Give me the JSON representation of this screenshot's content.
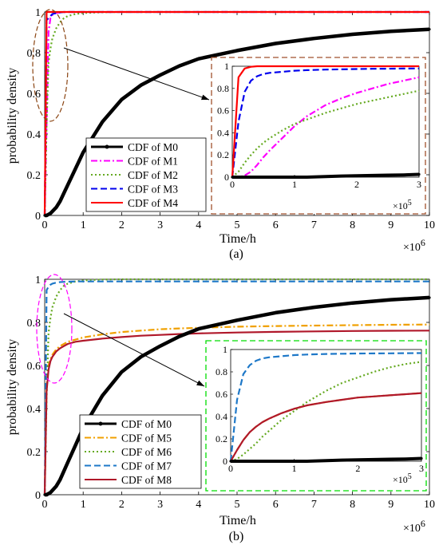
{
  "panels": [
    {
      "sublabel": "(a)",
      "xlabel": "Time/h",
      "ylabel": "probability density",
      "x_multiplier": "×10",
      "x_multiplier_exp": "6",
      "inset_multiplier": "×10",
      "inset_multiplier_exp": "5",
      "ellipse_color": "#8B4513",
      "inset_frame_color": "#A0522D"
    },
    {
      "sublabel": "(b)",
      "xlabel": "Time/h",
      "ylabel": "probability density",
      "x_multiplier": "×10",
      "x_multiplier_exp": "6",
      "inset_multiplier": "×10",
      "inset_multiplier_exp": "5",
      "ellipse_color": "#FF00FF",
      "inset_frame_color": "#00DD00"
    }
  ],
  "chart_data": [
    {
      "type": "line",
      "title": "",
      "xlabel": "Time/h",
      "ylabel": "probability density",
      "x_scale_note": "×10^6",
      "xlim": [
        0,
        10
      ],
      "ylim": [
        0,
        1
      ],
      "x_ticks": [
        "0",
        "1",
        "2",
        "3",
        "4",
        "5",
        "6",
        "7",
        "8",
        "9",
        "10"
      ],
      "y_ticks": [
        "0",
        "0.2",
        "0.4",
        "0.6",
        "0.8",
        "1"
      ],
      "legend_position": "center-left",
      "x": [
        0,
        0.05,
        0.1,
        0.15,
        0.2,
        0.3,
        0.4,
        0.5,
        0.6,
        0.8,
        1,
        1.5,
        2,
        2.5,
        3,
        3.5,
        4,
        5,
        6,
        7,
        8,
        9,
        10
      ],
      "series": [
        {
          "name": "CDF of M0",
          "color": "#000000",
          "style": "solid-marker",
          "values": [
            0,
            0.0,
            0.005,
            0.01,
            0.02,
            0.04,
            0.07,
            0.11,
            0.15,
            0.23,
            0.31,
            0.46,
            0.57,
            0.64,
            0.69,
            0.735,
            0.77,
            0.81,
            0.845,
            0.87,
            0.89,
            0.905,
            0.915
          ]
        },
        {
          "name": "CDF of M1",
          "color": "#FF00FF",
          "style": "dashdot",
          "values": [
            0,
            0.45,
            0.9,
            0.97,
            0.985,
            0.995,
            0.998,
            0.999,
            1,
            1,
            1,
            1,
            1,
            1,
            1,
            1,
            1,
            1,
            1,
            1,
            1,
            1,
            1
          ]
        },
        {
          "name": "CDF of M2",
          "color": "#66AA22",
          "style": "dotted",
          "values": [
            0,
            0.45,
            0.75,
            0.82,
            0.87,
            0.92,
            0.95,
            0.97,
            0.98,
            0.99,
            0.995,
            0.999,
            1,
            1,
            1,
            1,
            1,
            1,
            1,
            1,
            1,
            1,
            1
          ]
        },
        {
          "name": "CDF of M3",
          "color": "#0000EE",
          "style": "dashed",
          "values": [
            0,
            0.96,
            0.97,
            0.98,
            0.99,
            0.995,
            0.998,
            1,
            1,
            1,
            1,
            1,
            1,
            1,
            1,
            1,
            1,
            1,
            1,
            1,
            1,
            1,
            1
          ]
        },
        {
          "name": "CDF of M4",
          "color": "#FF0000",
          "style": "solid",
          "values": [
            0,
            1,
            1,
            1,
            1,
            1,
            1,
            1,
            1,
            1,
            1,
            1,
            1,
            1,
            1,
            1,
            1,
            1,
            1,
            1,
            1,
            1,
            1
          ]
        }
      ],
      "inset": {
        "xlim": [
          0,
          3
        ],
        "ylim": [
          0,
          1
        ],
        "x_scale_note": "×10^5",
        "x_ticks": [
          "0",
          "1",
          "2",
          "3"
        ],
        "y_ticks": [
          "0",
          "0.2",
          "0.4",
          "0.6",
          "0.8",
          "1"
        ],
        "x": [
          0,
          0.1,
          0.2,
          0.3,
          0.4,
          0.5,
          0.6,
          0.8,
          1,
          1.2,
          1.5,
          1.75,
          2,
          2.25,
          2.5,
          2.75,
          3
        ],
        "series": [
          {
            "name": "CDF of M0",
            "values": [
              0,
              0,
              0,
              0,
              0,
              0,
              0,
              0,
              0,
              0,
              0.005,
              0.01,
              0.012,
              0.015,
              0.018,
              0.02,
              0.025
            ]
          },
          {
            "name": "CDF of M1",
            "values": [
              0,
              0,
              0.015,
              0.05,
              0.11,
              0.18,
              0.24,
              0.35,
              0.46,
              0.55,
              0.65,
              0.71,
              0.76,
              0.8,
              0.84,
              0.87,
              0.9
            ]
          },
          {
            "name": "CDF of M2",
            "values": [
              0,
              0.05,
              0.13,
              0.2,
              0.26,
              0.31,
              0.35,
              0.42,
              0.48,
              0.52,
              0.58,
              0.62,
              0.66,
              0.69,
              0.72,
              0.75,
              0.78
            ]
          },
          {
            "name": "CDF of M3",
            "values": [
              0,
              0.5,
              0.77,
              0.87,
              0.91,
              0.93,
              0.94,
              0.95,
              0.96,
              0.965,
              0.97,
              0.972,
              0.975,
              0.977,
              0.978,
              0.979,
              0.98
            ]
          },
          {
            "name": "CDF of M4",
            "values": [
              0,
              0.9,
              0.98,
              0.995,
              1,
              1,
              1,
              1,
              1,
              1,
              1,
              1,
              1,
              1,
              1,
              1,
              1
            ]
          }
        ]
      }
    },
    {
      "type": "line",
      "title": "",
      "xlabel": "Time/h",
      "ylabel": "probability density",
      "x_scale_note": "×10^6",
      "xlim": [
        0,
        10
      ],
      "ylim": [
        0,
        1
      ],
      "x_ticks": [
        "0",
        "1",
        "2",
        "3",
        "4",
        "5",
        "6",
        "7",
        "8",
        "9",
        "10"
      ],
      "y_ticks": [
        "0",
        "0.2",
        "0.4",
        "0.6",
        "0.8",
        "1"
      ],
      "legend_position": "bottom-left",
      "x": [
        0,
        0.05,
        0.1,
        0.15,
        0.2,
        0.3,
        0.4,
        0.5,
        0.6,
        0.8,
        1,
        1.5,
        2,
        2.5,
        3,
        3.5,
        4,
        5,
        6,
        7,
        8,
        9,
        10
      ],
      "series": [
        {
          "name": "CDF of M0",
          "color": "#000000",
          "style": "solid-marker",
          "values": [
            0,
            0.0,
            0.005,
            0.01,
            0.02,
            0.04,
            0.07,
            0.11,
            0.15,
            0.23,
            0.31,
            0.46,
            0.57,
            0.64,
            0.69,
            0.735,
            0.77,
            0.81,
            0.845,
            0.87,
            0.89,
            0.905,
            0.915
          ]
        },
        {
          "name": "CDF of M5",
          "color": "#F0A000",
          "style": "dashdot",
          "values": [
            0,
            0.5,
            0.6,
            0.63,
            0.65,
            0.675,
            0.69,
            0.7,
            0.71,
            0.72,
            0.73,
            0.745,
            0.755,
            0.762,
            0.768,
            0.772,
            0.775,
            0.78,
            0.783,
            0.785,
            0.787,
            0.789,
            0.79
          ]
        },
        {
          "name": "CDF of M6",
          "color": "#66AA22",
          "style": "dotted",
          "values": [
            0,
            0.45,
            0.75,
            0.82,
            0.87,
            0.92,
            0.95,
            0.97,
            0.98,
            0.99,
            0.995,
            0.999,
            1,
            1,
            1,
            1,
            1,
            1,
            1,
            1,
            1,
            1,
            1
          ]
        },
        {
          "name": "CDF of M7",
          "color": "#1E78C8",
          "style": "dashed",
          "values": [
            0,
            0.95,
            0.965,
            0.975,
            0.98,
            0.985,
            0.987,
            0.988,
            0.989,
            0.99,
            0.99,
            0.99,
            0.99,
            0.99,
            0.99,
            0.99,
            0.99,
            0.99,
            0.99,
            0.99,
            0.99,
            0.99,
            0.99
          ]
        },
        {
          "name": "CDF of M8",
          "color": "#B0182A",
          "style": "solid",
          "values": [
            0,
            0.48,
            0.58,
            0.62,
            0.64,
            0.665,
            0.68,
            0.69,
            0.7,
            0.71,
            0.715,
            0.725,
            0.732,
            0.738,
            0.742,
            0.746,
            0.749,
            0.753,
            0.756,
            0.758,
            0.76,
            0.761,
            0.762
          ]
        }
      ],
      "inset": {
        "xlim": [
          0,
          3
        ],
        "ylim": [
          0,
          1
        ],
        "x_scale_note": "×10^5",
        "x_ticks": [
          "0",
          "1",
          "2",
          "3"
        ],
        "y_ticks": [
          "0",
          "0.2",
          "0.4",
          "0.6",
          "0.8",
          "1"
        ],
        "x": [
          0,
          0.1,
          0.2,
          0.3,
          0.4,
          0.5,
          0.6,
          0.8,
          1,
          1.2,
          1.5,
          1.75,
          2,
          2.25,
          2.5,
          2.75,
          3
        ],
        "series": [
          {
            "name": "CDF of M0",
            "values": [
              0,
              0,
              0,
              0,
              0,
              0,
              0,
              0,
              0,
              0,
              0.005,
              0.01,
              0.012,
              0.015,
              0.018,
              0.02,
              0.025
            ]
          },
          {
            "name": "CDF of M5",
            "values": [
              0,
              0.1,
              0.19,
              0.26,
              0.31,
              0.35,
              0.38,
              0.43,
              0.47,
              0.5,
              0.53,
              0.55,
              0.57,
              0.58,
              0.59,
              0.6,
              0.61
            ]
          },
          {
            "name": "CDF of M6",
            "values": [
              0,
              0.02,
              0.06,
              0.11,
              0.16,
              0.22,
              0.27,
              0.37,
              0.45,
              0.53,
              0.63,
              0.7,
              0.75,
              0.8,
              0.84,
              0.87,
              0.89
            ]
          },
          {
            "name": "CDF of M7",
            "values": [
              0,
              0.55,
              0.78,
              0.86,
              0.9,
              0.92,
              0.93,
              0.94,
              0.95,
              0.955,
              0.96,
              0.962,
              0.964,
              0.965,
              0.966,
              0.967,
              0.968
            ]
          },
          {
            "name": "CDF of M8",
            "values": [
              0,
              0.1,
              0.19,
              0.26,
              0.31,
              0.35,
              0.38,
              0.43,
              0.47,
              0.5,
              0.53,
              0.55,
              0.57,
              0.58,
              0.59,
              0.6,
              0.61
            ]
          }
        ]
      }
    }
  ]
}
